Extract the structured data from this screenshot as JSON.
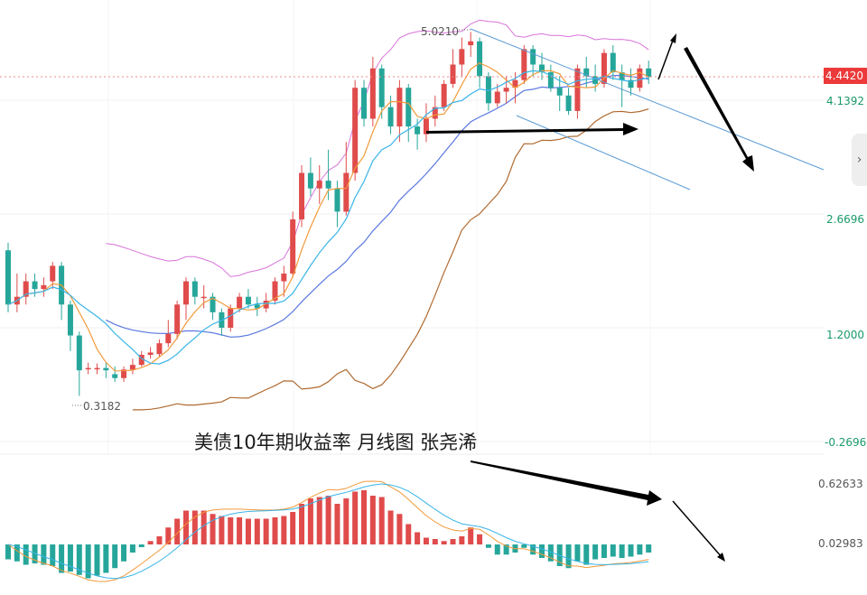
{
  "chart_data": {
    "type": "candlestick",
    "title": "美债10年期收益率 月线图 张尧浠",
    "main_axis": {
      "ylim": [
        -0.2696,
        6.0
      ],
      "ticks": [
        "4.1392",
        "2.6696",
        "1.2000",
        "-0.2696"
      ],
      "tick_values": [
        4.1392,
        2.6696,
        1.2,
        -0.2696
      ],
      "price_label": "4.4420",
      "price_value": 4.442
    },
    "annotations": {
      "high_label": "5.0210",
      "high_value": 5.021,
      "low_label": "0.3182",
      "low_value": 0.3182
    },
    "macd_axis": {
      "ticks": [
        "0.62633",
        "0.02983"
      ],
      "tick_values": [
        0.62633,
        0.02983
      ]
    },
    "colors": {
      "up": "#e04b4b",
      "down": "#26a69a",
      "price_tag": "#ec3a3a",
      "boll_upper": "#d874d8",
      "boll_mid": "#5a78e0",
      "boll_lower": "#b06a30",
      "ma_fast": "#f29a3a",
      "ma_slow": "#38b4e8"
    },
    "candles": [
      [
        2.2,
        1.5,
        2.3,
        1.4
      ],
      [
        1.5,
        1.6,
        1.9,
        1.4
      ],
      [
        1.6,
        1.8,
        1.9,
        1.5
      ],
      [
        1.8,
        1.7,
        1.9,
        1.6
      ],
      [
        1.7,
        1.75,
        1.85,
        1.6
      ],
      [
        1.8,
        2.0,
        2.05,
        1.7
      ],
      [
        2.0,
        1.5,
        2.05,
        1.3
      ],
      [
        1.5,
        1.1,
        1.55,
        0.9
      ],
      [
        1.1,
        0.65,
        1.15,
        0.32
      ],
      [
        0.68,
        0.68,
        0.75,
        0.6
      ],
      [
        0.68,
        0.68,
        0.74,
        0.6
      ],
      [
        0.68,
        0.65,
        0.75,
        0.55
      ],
      [
        0.6,
        0.55,
        0.7,
        0.5
      ],
      [
        0.55,
        0.66,
        0.7,
        0.5
      ],
      [
        0.66,
        0.72,
        0.8,
        0.6
      ],
      [
        0.72,
        0.85,
        0.9,
        0.7
      ],
      [
        0.85,
        0.88,
        0.95,
        0.8
      ],
      [
        0.86,
        1.0,
        1.05,
        0.82
      ],
      [
        1.0,
        1.12,
        1.3,
        0.95
      ],
      [
        1.12,
        1.5,
        1.55,
        1.05
      ],
      [
        1.5,
        1.8,
        1.85,
        1.3
      ],
      [
        1.8,
        1.6,
        1.85,
        1.5
      ],
      [
        1.6,
        1.6,
        1.75,
        1.45
      ],
      [
        1.6,
        1.4,
        1.65,
        1.3
      ],
      [
        1.4,
        1.2,
        1.45,
        1.1
      ],
      [
        1.2,
        1.45,
        1.5,
        1.15
      ],
      [
        1.45,
        1.6,
        1.65,
        1.4
      ],
      [
        1.6,
        1.5,
        1.7,
        1.45
      ],
      [
        1.5,
        1.45,
        1.6,
        1.35
      ],
      [
        1.45,
        1.55,
        1.65,
        1.4
      ],
      [
        1.55,
        1.8,
        1.85,
        1.5
      ],
      [
        1.8,
        1.9,
        2.0,
        1.6
      ],
      [
        1.9,
        2.6,
        2.7,
        1.85
      ],
      [
        2.6,
        3.2,
        3.3,
        2.5
      ],
      [
        3.2,
        3.0,
        3.4,
        2.9
      ],
      [
        3.0,
        3.1,
        3.3,
        2.8
      ],
      [
        3.1,
        3.0,
        3.5,
        2.85
      ],
      [
        3.0,
        2.7,
        3.1,
        2.5
      ],
      [
        2.7,
        3.2,
        3.6,
        2.65
      ],
      [
        3.2,
        4.3,
        4.4,
        3.1
      ],
      [
        4.3,
        3.9,
        4.4,
        3.8
      ],
      [
        3.9,
        4.55,
        4.7,
        3.8
      ],
      [
        4.55,
        4.05,
        4.6,
        3.9
      ],
      [
        4.05,
        3.8,
        4.2,
        3.7
      ],
      [
        3.8,
        4.3,
        4.4,
        3.6
      ],
      [
        4.3,
        3.8,
        4.35,
        3.6
      ],
      [
        3.8,
        3.7,
        3.9,
        3.5
      ],
      [
        3.7,
        3.9,
        4.1,
        3.6
      ],
      [
        3.9,
        4.05,
        4.2,
        3.8
      ],
      [
        4.05,
        4.35,
        4.4,
        4.0
      ],
      [
        4.35,
        4.6,
        4.8,
        4.3
      ],
      [
        4.6,
        4.8,
        4.95,
        4.45
      ],
      [
        4.85,
        4.9,
        5.021,
        4.7
      ],
      [
        4.9,
        4.45,
        4.95,
        4.3
      ],
      [
        4.45,
        4.1,
        4.5,
        4.0
      ],
      [
        4.1,
        4.25,
        4.35,
        4.05
      ],
      [
        4.25,
        4.3,
        4.45,
        4.1
      ],
      [
        4.3,
        4.4,
        4.5,
        4.1
      ],
      [
        4.4,
        4.8,
        4.85,
        4.35
      ],
      [
        4.8,
        4.6,
        4.85,
        4.45
      ],
      [
        4.6,
        4.5,
        4.75,
        4.4
      ],
      [
        4.5,
        4.3,
        4.6,
        4.25
      ],
      [
        4.3,
        4.2,
        4.45,
        4.0
      ],
      [
        4.2,
        4.0,
        4.3,
        3.95
      ],
      [
        4.0,
        4.55,
        4.6,
        3.9
      ],
      [
        4.55,
        4.45,
        4.7,
        4.3
      ],
      [
        4.45,
        4.35,
        4.6,
        4.25
      ],
      [
        4.35,
        4.75,
        4.8,
        4.3
      ],
      [
        4.75,
        4.5,
        4.85,
        4.4
      ],
      [
        4.5,
        4.4,
        4.6,
        4.05
      ],
      [
        4.4,
        4.3,
        4.55,
        4.2
      ],
      [
        4.3,
        4.55,
        4.6,
        4.25
      ],
      [
        4.55,
        4.44,
        4.65,
        4.35
      ]
    ],
    "macd_hist": [
      -0.22,
      -0.25,
      -0.3,
      -0.28,
      -0.3,
      -0.32,
      -0.42,
      -0.4,
      -0.45,
      -0.5,
      -0.46,
      -0.42,
      -0.35,
      -0.25,
      -0.12,
      -0.04,
      0.05,
      0.12,
      0.25,
      0.38,
      0.5,
      0.5,
      0.5,
      0.45,
      0.42,
      0.4,
      0.4,
      0.38,
      0.38,
      0.38,
      0.4,
      0.42,
      0.48,
      0.6,
      0.68,
      0.7,
      0.72,
      0.6,
      0.68,
      0.78,
      0.8,
      0.72,
      0.7,
      0.5,
      0.45,
      0.3,
      0.18,
      0.1,
      0.08,
      0.05,
      0.08,
      0.12,
      0.25,
      0.15,
      -0.05,
      -0.15,
      -0.15,
      -0.12,
      -0.05,
      -0.15,
      -0.2,
      -0.25,
      -0.32,
      -0.35,
      -0.25,
      -0.3,
      -0.22,
      -0.2,
      -0.18,
      -0.2,
      -0.18,
      -0.15,
      -0.12
    ]
  }
}
